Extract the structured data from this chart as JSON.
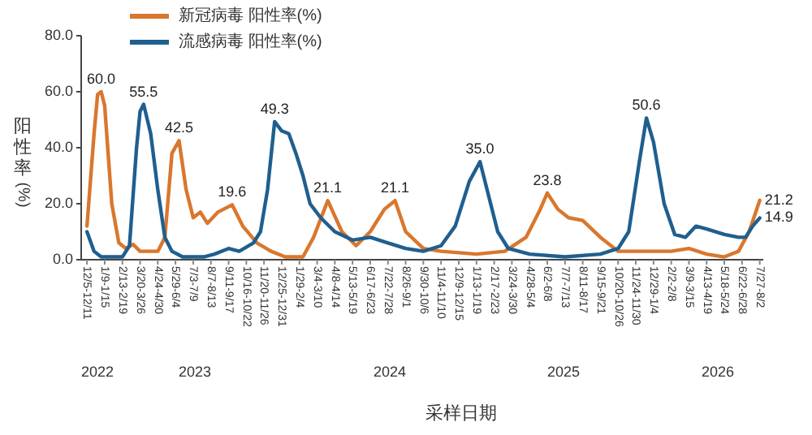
{
  "chart_data": {
    "type": "line",
    "xlabel": "采样日期",
    "ylabel": "阳性率(%)",
    "xlim": [
      "2022-11-30",
      "2026-08-03"
    ],
    "ylim": [
      0,
      80
    ],
    "yticks": [
      {
        "value": 0,
        "label": "0.0"
      },
      {
        "value": 20,
        "label": "20.0"
      },
      {
        "value": 40,
        "label": "40.0"
      },
      {
        "value": 60,
        "label": "60.0"
      },
      {
        "value": 80,
        "label": "80.0"
      }
    ],
    "xticks": [
      {
        "value": "2022-12-05",
        "label": "12/5-12/11"
      },
      {
        "value": "2023-01-09",
        "label": "1/9-1/15"
      },
      {
        "value": "2023-02-13",
        "label": "2/13-2/19"
      },
      {
        "value": "2023-03-20",
        "label": "3/20-3/26"
      },
      {
        "value": "2023-04-24",
        "label": "4/24-4/30"
      },
      {
        "value": "2023-05-29",
        "label": "5/29-6/4"
      },
      {
        "value": "2023-07-03",
        "label": "7/3-7/9"
      },
      {
        "value": "2023-08-07",
        "label": "8/7-8/13"
      },
      {
        "value": "2023-09-11",
        "label": "9/11-9/17"
      },
      {
        "value": "2023-10-16",
        "label": "10/16-10/22"
      },
      {
        "value": "2023-11-20",
        "label": "11/20-11/26"
      },
      {
        "value": "2023-12-25",
        "label": "12/25-12/31"
      },
      {
        "value": "2024-01-29",
        "label": "1/29-2/4"
      },
      {
        "value": "2024-03-04",
        "label": "3/4-3/10"
      },
      {
        "value": "2024-04-08",
        "label": "4/8-4/14"
      },
      {
        "value": "2024-05-13",
        "label": "5/13-5/19"
      },
      {
        "value": "2024-06-17",
        "label": "6/17-6/23"
      },
      {
        "value": "2024-07-22",
        "label": "7/22-7/28"
      },
      {
        "value": "2024-08-26",
        "label": "8/26-9/1"
      },
      {
        "value": "2024-09-30",
        "label": "9/30-10/6"
      },
      {
        "value": "2024-11-04",
        "label": "11/4-11/10"
      },
      {
        "value": "2024-12-09",
        "label": "12/9-12/15"
      },
      {
        "value": "2025-01-13",
        "label": "1/13-1/19"
      },
      {
        "value": "2025-02-17",
        "label": "2/17-2/23"
      },
      {
        "value": "2025-03-24",
        "label": "3/24-3/30"
      },
      {
        "value": "2025-04-28",
        "label": "4/28-5/4"
      },
      {
        "value": "2025-06-02",
        "label": "6/2-6/8"
      },
      {
        "value": "2025-07-07",
        "label": "7/7-7/13"
      },
      {
        "value": "2025-08-11",
        "label": "8/11-8/17"
      },
      {
        "value": "2025-09-15",
        "label": "9/15-9/21"
      },
      {
        "value": "2025-10-20",
        "label": "10/20-10/26"
      },
      {
        "value": "2025-11-24",
        "label": "11/24-11/30"
      },
      {
        "value": "2025-12-29",
        "label": "12/29-1/4"
      },
      {
        "value": "2026-02-02",
        "label": "2/2-2/8"
      },
      {
        "value": "2026-03-09",
        "label": "3/9-3/15"
      },
      {
        "value": "2026-04-13",
        "label": "4/13-4/19"
      },
      {
        "value": "2026-05-18",
        "label": "5/18-5/24"
      },
      {
        "value": "2026-06-22",
        "label": "6/22-6/28"
      },
      {
        "value": "2026-07-27",
        "label": "7/27-8/2"
      }
    ],
    "annotations": [
      "2022",
      "2023",
      "2024",
      "2025",
      "2026"
    ],
    "legend": "top left",
    "grid": false,
    "marker": "none",
    "line_style": "solid",
    "series": [
      {
        "name": "新冠病毒 阳性率(%)",
        "color": "#d9772e",
        "x": [
          "2022-12-05",
          "2022-12-19",
          "2022-12-26",
          "2023-01-02",
          "2023-01-09",
          "2023-01-23",
          "2023-02-06",
          "2023-02-20",
          "2023-03-06",
          "2023-03-20",
          "2023-04-24",
          "2023-05-08",
          "2023-05-22",
          "2023-06-05",
          "2023-06-19",
          "2023-07-03",
          "2023-07-17",
          "2023-07-31",
          "2023-08-21",
          "2023-09-18",
          "2023-10-09",
          "2023-11-06",
          "2023-12-04",
          "2024-01-01",
          "2024-02-05",
          "2024-02-26",
          "2024-03-25",
          "2024-04-22",
          "2024-05-20",
          "2024-06-17",
          "2024-07-15",
          "2024-08-05",
          "2024-08-26",
          "2024-09-30",
          "2024-11-04",
          "2025-01-13",
          "2025-03-10",
          "2025-04-21",
          "2025-05-19",
          "2025-06-02",
          "2025-06-23",
          "2025-07-14",
          "2025-08-11",
          "2025-09-15",
          "2025-10-20",
          "2025-12-29",
          "2026-02-02",
          "2026-03-09",
          "2026-04-13",
          "2026-05-18",
          "2026-06-15",
          "2026-07-06",
          "2026-07-27"
        ],
        "values": [
          12,
          45,
          59,
          60,
          55,
          20,
          6,
          4,
          5.5,
          3,
          3,
          8,
          38,
          42.5,
          25,
          15,
          17,
          13,
          17,
          19.6,
          12,
          6,
          3,
          1,
          1,
          8,
          21.1,
          10,
          5,
          10,
          18,
          21.1,
          10,
          4,
          3,
          2,
          3,
          8,
          18,
          23.8,
          18,
          15,
          14,
          8,
          3,
          3,
          3,
          4,
          2,
          1,
          3,
          10,
          21.2
        ],
        "value_labels": [
          null,
          null,
          null,
          "60.0",
          null,
          null,
          null,
          null,
          null,
          null,
          null,
          null,
          null,
          "42.5",
          null,
          null,
          null,
          null,
          null,
          "19.6",
          null,
          null,
          null,
          null,
          null,
          null,
          "21.1",
          null,
          null,
          null,
          null,
          "21.1",
          null,
          null,
          null,
          null,
          null,
          null,
          null,
          "23.8",
          null,
          null,
          null,
          null,
          null,
          null,
          null,
          null,
          null,
          null,
          null,
          null,
          "21.2"
        ]
      },
      {
        "name": "流感病毒 阳性率(%)",
        "color": "#1f5f8f",
        "x": [
          "2022-12-05",
          "2022-12-19",
          "2023-01-02",
          "2023-02-13",
          "2023-02-27",
          "2023-03-13",
          "2023-03-20",
          "2023-03-27",
          "2023-04-10",
          "2023-04-24",
          "2023-05-08",
          "2023-05-22",
          "2023-06-12",
          "2023-07-24",
          "2023-08-14",
          "2023-09-11",
          "2023-10-02",
          "2023-10-30",
          "2023-11-13",
          "2023-11-27",
          "2023-12-11",
          "2023-12-25",
          "2024-01-08",
          "2024-01-22",
          "2024-02-05",
          "2024-02-19",
          "2024-03-11",
          "2024-04-08",
          "2024-05-13",
          "2024-06-17",
          "2024-07-22",
          "2024-08-26",
          "2024-09-30",
          "2024-11-04",
          "2024-12-02",
          "2024-12-30",
          "2025-01-20",
          "2025-02-03",
          "2025-02-24",
          "2025-03-17",
          "2025-04-28",
          "2025-07-07",
          "2025-09-15",
          "2025-10-20",
          "2025-11-10",
          "2025-12-01",
          "2025-12-15",
          "2025-12-29",
          "2026-01-19",
          "2026-02-09",
          "2026-03-02",
          "2026-03-23",
          "2026-04-13",
          "2026-05-18",
          "2026-06-15",
          "2026-06-29",
          "2026-07-13",
          "2026-07-27"
        ],
        "values": [
          10,
          3,
          1,
          1,
          5,
          40,
          53,
          55.5,
          45,
          25,
          8,
          3,
          1,
          1,
          2,
          4,
          3,
          6,
          10,
          25,
          49.3,
          46,
          45,
          38,
          30,
          20,
          15,
          10,
          7,
          8,
          6,
          4,
          3,
          5,
          12,
          28,
          35.0,
          25,
          10,
          4,
          2,
          1,
          2,
          4,
          10,
          35,
          50.6,
          42,
          20,
          9,
          8,
          12,
          11,
          9,
          8,
          8,
          12,
          14.9
        ],
        "value_labels": [
          null,
          null,
          null,
          null,
          null,
          null,
          null,
          "55.5",
          null,
          null,
          null,
          null,
          null,
          null,
          null,
          null,
          null,
          null,
          null,
          null,
          "49.3",
          null,
          null,
          null,
          null,
          null,
          null,
          null,
          null,
          null,
          null,
          null,
          null,
          null,
          null,
          null,
          "35.0",
          null,
          null,
          null,
          null,
          null,
          null,
          null,
          null,
          null,
          "50.6",
          null,
          null,
          null,
          null,
          null,
          null,
          null,
          null,
          null,
          null,
          "14.9"
        ]
      }
    ]
  }
}
